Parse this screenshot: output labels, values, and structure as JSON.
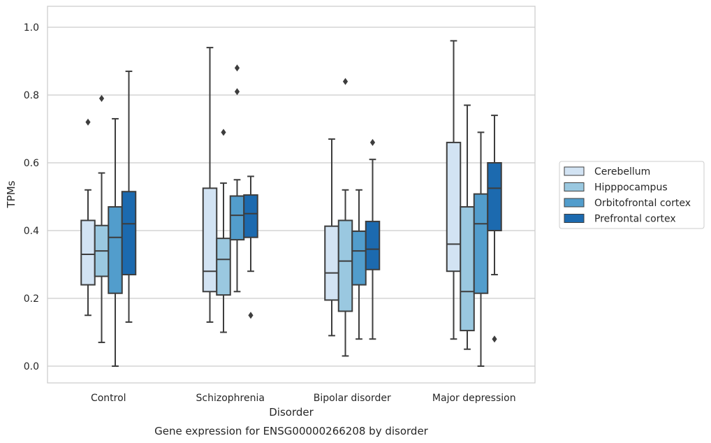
{
  "chart_data": {
    "type": "box",
    "caption": "Gene expression for ENSG00000266208 by disorder",
    "xlabel": "Disorder",
    "ylabel": "TPMs",
    "ylim": [
      -0.05,
      1.06
    ],
    "yticks": [
      "0.0",
      "0.2",
      "0.4",
      "0.6",
      "0.8",
      "1.0"
    ],
    "ytick_values": [
      0.0,
      0.2,
      0.4,
      0.6,
      0.8,
      1.0
    ],
    "grid": true,
    "legend_position": "right",
    "categories": [
      "Control",
      "Schizophrenia",
      "Bipolar disorder",
      "Major depression"
    ],
    "series": [
      {
        "name": "Cerebellum",
        "color": "#d2e3f3",
        "boxes": [
          {
            "whislo": 0.15,
            "q1": 0.24,
            "med": 0.33,
            "q3": 0.43,
            "whishi": 0.52,
            "fliers": [
              0.72
            ]
          },
          {
            "whislo": 0.13,
            "q1": 0.22,
            "med": 0.28,
            "q3": 0.525,
            "whishi": 0.94,
            "fliers": []
          },
          {
            "whislo": 0.09,
            "q1": 0.195,
            "med": 0.275,
            "q3": 0.413,
            "whishi": 0.67,
            "fliers": []
          },
          {
            "whislo": 0.08,
            "q1": 0.28,
            "med": 0.36,
            "q3": 0.66,
            "whishi": 0.96,
            "fliers": []
          }
        ]
      },
      {
        "name": "Hipppocampus",
        "color": "#9ac8e0",
        "boxes": [
          {
            "whislo": 0.07,
            "q1": 0.265,
            "med": 0.34,
            "q3": 0.415,
            "whishi": 0.57,
            "fliers": [
              0.79
            ]
          },
          {
            "whislo": 0.1,
            "q1": 0.21,
            "med": 0.315,
            "q3": 0.377,
            "whishi": 0.54,
            "fliers": [
              0.69
            ]
          },
          {
            "whislo": 0.03,
            "q1": 0.162,
            "med": 0.31,
            "q3": 0.43,
            "whishi": 0.52,
            "fliers": [
              0.84
            ]
          },
          {
            "whislo": 0.05,
            "q1": 0.105,
            "med": 0.22,
            "q3": 0.47,
            "whishi": 0.77,
            "fliers": []
          }
        ]
      },
      {
        "name": "Orbitofrontal cortex",
        "color": "#529dcc",
        "boxes": [
          {
            "whislo": 0.0,
            "q1": 0.215,
            "med": 0.38,
            "q3": 0.47,
            "whishi": 0.73,
            "fliers": []
          },
          {
            "whislo": 0.22,
            "q1": 0.373,
            "med": 0.445,
            "q3": 0.502,
            "whishi": 0.55,
            "fliers": [
              0.88,
              0.81
            ]
          },
          {
            "whislo": 0.08,
            "q1": 0.24,
            "med": 0.34,
            "q3": 0.398,
            "whishi": 0.52,
            "fliers": []
          },
          {
            "whislo": 0.0,
            "q1": 0.215,
            "med": 0.42,
            "q3": 0.508,
            "whishi": 0.69,
            "fliers": []
          }
        ]
      },
      {
        "name": "Prefrontal cortex",
        "color": "#1c6aaf",
        "boxes": [
          {
            "whislo": 0.13,
            "q1": 0.27,
            "med": 0.42,
            "q3": 0.515,
            "whishi": 0.87,
            "fliers": []
          },
          {
            "whislo": 0.28,
            "q1": 0.38,
            "med": 0.45,
            "q3": 0.505,
            "whishi": 0.56,
            "fliers": [
              0.15
            ]
          },
          {
            "whislo": 0.08,
            "q1": 0.285,
            "med": 0.345,
            "q3": 0.427,
            "whishi": 0.61,
            "fliers": [
              0.66
            ]
          },
          {
            "whislo": 0.27,
            "q1": 0.4,
            "med": 0.525,
            "q3": 0.6,
            "whishi": 0.74,
            "fliers": [
              0.08
            ]
          }
        ]
      }
    ]
  }
}
